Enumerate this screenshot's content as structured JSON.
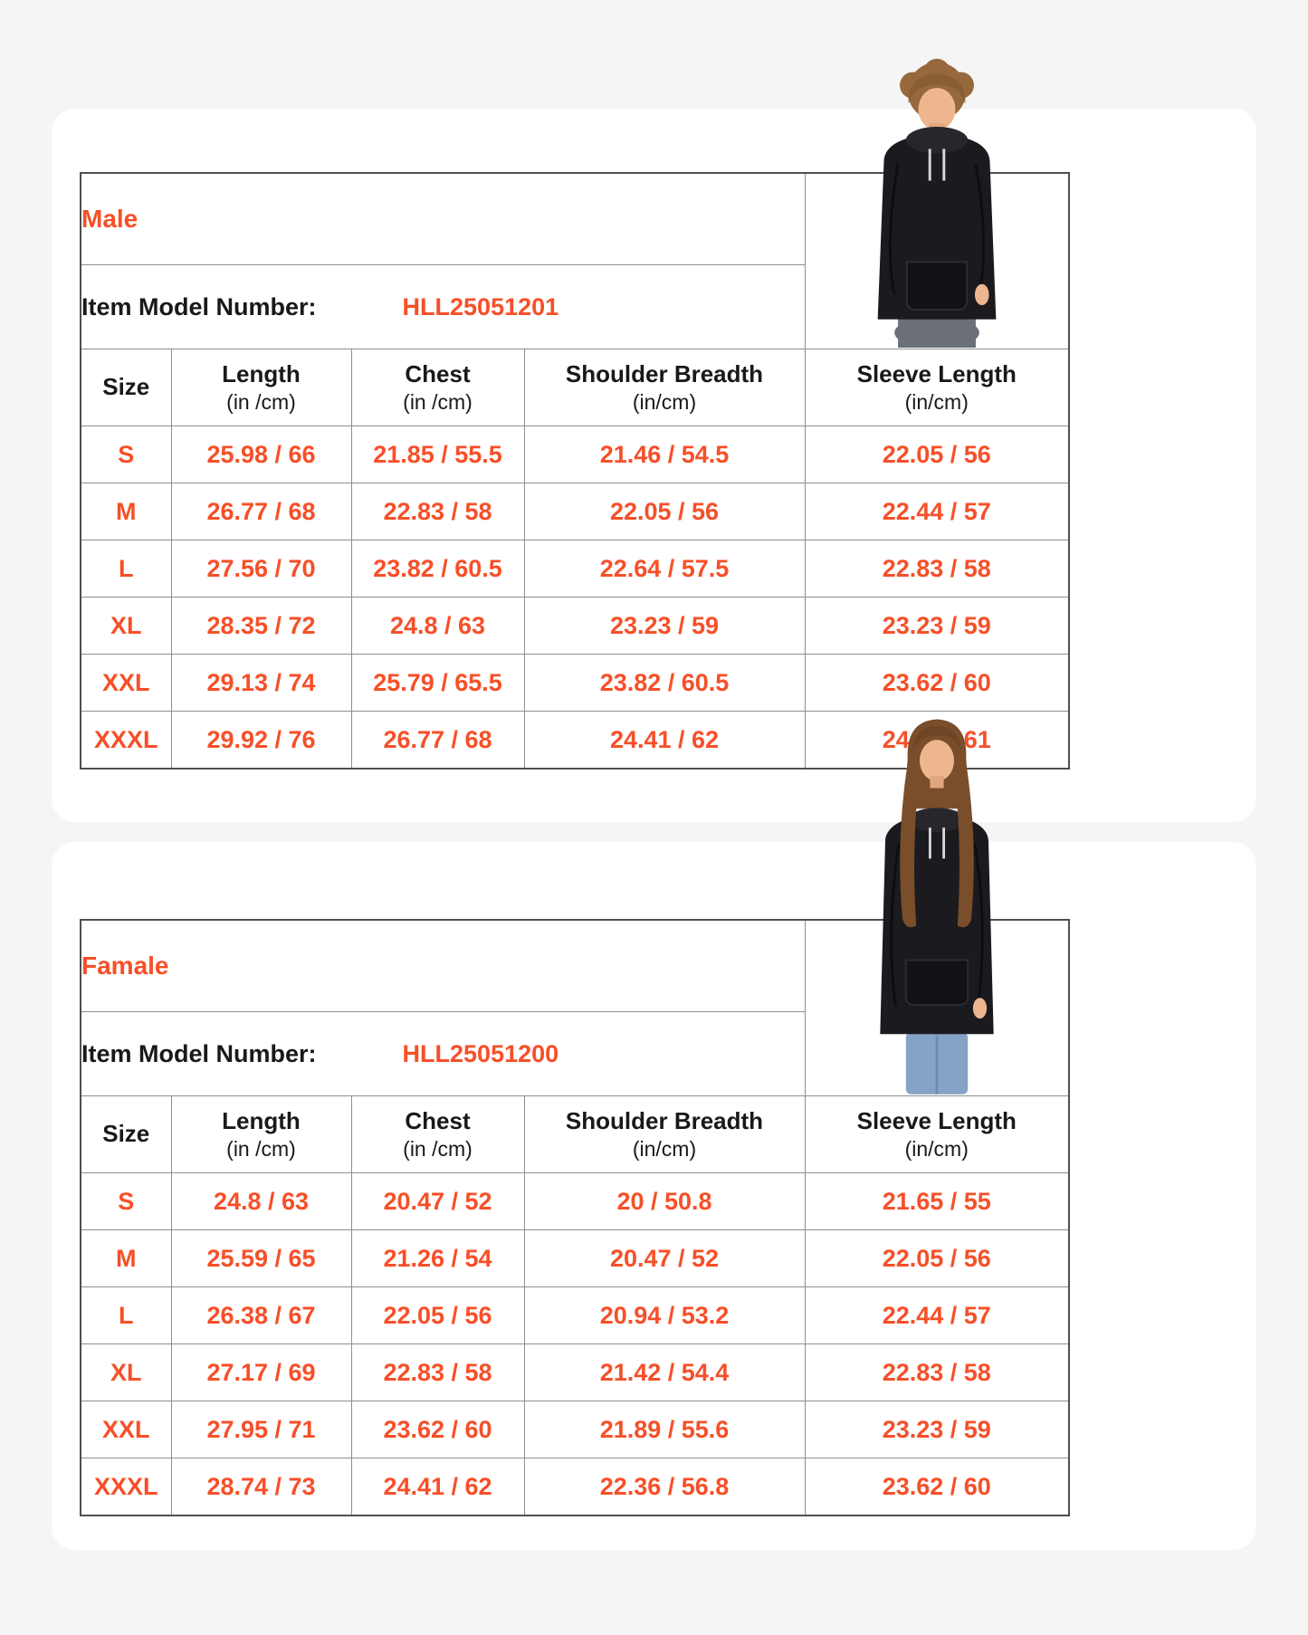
{
  "page": {
    "background_color": "#f5f5f6",
    "card_color": "#ffffff"
  },
  "colors": {
    "accent_orange": "#f74f28",
    "text_black": "#191919",
    "grid_line": "#8f8f8f",
    "outer_border": "#4f4f4f",
    "hoodie_black": "#1b1b1f"
  },
  "photos": [
    {
      "name": "male-model-photo",
      "description": "young man with curly brown hair wearing black pullover hoodie, hand in pocket"
    },
    {
      "name": "female-model-photo",
      "description": "young woman with long brown hair wearing black pullover hoodie and blue jeans"
    }
  ],
  "chart_data": [
    {
      "type": "table",
      "title": "Male",
      "model_label": "Item Model Number:",
      "model_number": "HLL25051201",
      "columns": [
        {
          "label": "Size",
          "sub": ""
        },
        {
          "label": "Length",
          "sub": "(in /cm)"
        },
        {
          "label": "Chest",
          "sub": "(in /cm)"
        },
        {
          "label": "Shoulder Breadth",
          "sub": "(in/cm)"
        },
        {
          "label": "Sleeve Length",
          "sub": "(in/cm)"
        }
      ],
      "rows": [
        [
          "S",
          "25.98 / 66",
          "21.85 / 55.5",
          "21.46 / 54.5",
          "22.05 / 56"
        ],
        [
          "M",
          "26.77 / 68",
          "22.83 / 58",
          "22.05 / 56",
          "22.44 / 57"
        ],
        [
          "L",
          "27.56 / 70",
          "23.82 / 60.5",
          "22.64 / 57.5",
          "22.83 / 58"
        ],
        [
          "XL",
          "28.35 / 72",
          "24.8 / 63",
          "23.23 / 59",
          "23.23 / 59"
        ],
        [
          "XXL",
          "29.13 / 74",
          "25.79 / 65.5",
          "23.82 / 60.5",
          "23.62 / 60"
        ],
        [
          "XXXL",
          "29.92 / 76",
          "26.77 / 68",
          "24.41 / 62",
          "24.02 / 61"
        ]
      ]
    },
    {
      "type": "table",
      "title": "Famale",
      "model_label": "Item Model Number:",
      "model_number": "HLL25051200",
      "columns": [
        {
          "label": "Size",
          "sub": ""
        },
        {
          "label": "Length",
          "sub": "(in /cm)"
        },
        {
          "label": "Chest",
          "sub": "(in /cm)"
        },
        {
          "label": "Shoulder Breadth",
          "sub": "(in/cm)"
        },
        {
          "label": "Sleeve Length",
          "sub": "(in/cm)"
        }
      ],
      "rows": [
        [
          "S",
          "24.8 / 63",
          "20.47 / 52",
          "20 / 50.8",
          "21.65 / 55"
        ],
        [
          "M",
          "25.59 / 65",
          "21.26 / 54",
          "20.47 / 52",
          "22.05 / 56"
        ],
        [
          "L",
          "26.38 / 67",
          "22.05 / 56",
          "20.94 / 53.2",
          "22.44 / 57"
        ],
        [
          "XL",
          "27.17 / 69",
          "22.83 / 58",
          "21.42 / 54.4",
          "22.83 / 58"
        ],
        [
          "XXL",
          "27.95 / 71",
          "23.62 / 60",
          "21.89 / 55.6",
          "23.23 / 59"
        ],
        [
          "XXXL",
          "28.74 / 73",
          "24.41 / 62",
          "22.36 / 56.8",
          "23.62 / 60"
        ]
      ]
    }
  ]
}
